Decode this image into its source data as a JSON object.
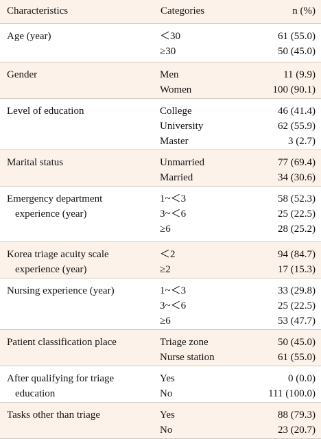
{
  "table": {
    "headers": [
      "Characteristics",
      "Categories",
      "n (%)"
    ],
    "rows": [
      {
        "char": [
          "Age (year)"
        ],
        "cats": [
          "＜30",
          "≥30"
        ],
        "vals": [
          "61 (55.0)",
          "50 (45.0)"
        ],
        "shaded": false
      },
      {
        "char": [
          "Gender"
        ],
        "cats": [
          "Men",
          "Women"
        ],
        "vals": [
          "11 (9.9)",
          "100 (90.1)"
        ],
        "shaded": true
      },
      {
        "char": [
          "Level of education"
        ],
        "cats": [
          "College",
          "University",
          "Master"
        ],
        "vals": [
          "46 (41.4)",
          "62 (55.9)",
          "3 (2.7)"
        ],
        "shaded": false
      },
      {
        "char": [
          "Marital status"
        ],
        "cats": [
          "Unmarried",
          "Married"
        ],
        "vals": [
          "77 (69.4)",
          "34 (30.6)"
        ],
        "shaded": true
      },
      {
        "char": [
          "Emergency department",
          "experience (year)"
        ],
        "cats": [
          "1~＜3",
          "3~＜6",
          "≥6"
        ],
        "vals": [
          "58 (52.3)",
          "25 (22.5)",
          "28 (25.2)"
        ],
        "shaded": false
      },
      {
        "char": [
          "Korea triage acuity scale",
          "experience (year)"
        ],
        "cats": [
          "＜2",
          "≥2"
        ],
        "vals": [
          "94 (84.7)",
          "17 (15.3)"
        ],
        "shaded": true
      },
      {
        "char": [
          "Nursing experience (year)"
        ],
        "cats": [
          "1~＜3",
          "3~＜6",
          "≥6"
        ],
        "vals": [
          "33 (29.8)",
          "25 (22.5)",
          "53 (47.7)"
        ],
        "shaded": false
      },
      {
        "char": [
          "Patient classification place"
        ],
        "cats": [
          "Triage zone",
          "Nurse station"
        ],
        "vals": [
          "50 (45.0)",
          "61 (55.0)"
        ],
        "shaded": true
      },
      {
        "char": [
          "After qualifying for triage",
          "education"
        ],
        "cats": [
          "Yes",
          "No"
        ],
        "vals": [
          "0 (0.0)",
          "111 (100.0)"
        ],
        "shaded": false
      },
      {
        "char": [
          "Tasks other than triage"
        ],
        "cats": [
          "Yes",
          "No"
        ],
        "vals": [
          "88 (79.3)",
          "23 (20.7)"
        ],
        "shaded": true
      }
    ]
  }
}
